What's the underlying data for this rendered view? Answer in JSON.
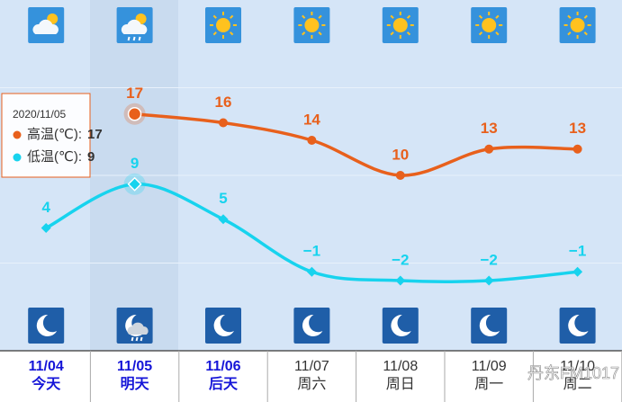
{
  "chart_data": {
    "type": "line",
    "categories": [
      "11/04",
      "11/05",
      "11/06",
      "11/07",
      "11/08",
      "11/09",
      "11/10"
    ],
    "sublabels": [
      "今天",
      "明天",
      "后天",
      "周六",
      "周日",
      "周一",
      "周二"
    ],
    "series": [
      {
        "color": "#e8601c",
        "values": [
          null,
          17,
          16,
          14,
          10,
          13,
          13
        ]
      },
      {
        "color": "#17d3ee",
        "values": [
          4,
          9,
          5,
          -1,
          -2,
          -2,
          -1
        ],
        "value_labels": [
          "4",
          "9",
          "5",
          "−1",
          "−2",
          "−2",
          "−1"
        ]
      }
    ],
    "ylim": [
      -10,
      30
    ],
    "yticks": [
      0,
      10,
      20
    ],
    "grid": true,
    "tooltip": {
      "date": "2020/11/05",
      "labels": [
        "高温(℃):",
        "低温(℃):"
      ]
    },
    "watermark": "丹东FM1017"
  }
}
